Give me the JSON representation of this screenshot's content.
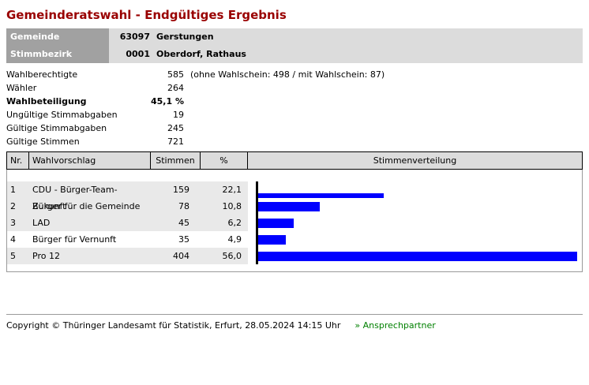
{
  "header": {
    "title": "Gemeinderatswahl - Endgültiges Ergebnis"
  },
  "info": {
    "rows": [
      {
        "label": "Gemeinde",
        "code": "63097",
        "name": "Gerstungen"
      },
      {
        "label": "Stimmbezirk",
        "code": "0001",
        "name": "Oberdorf, Rathaus"
      }
    ]
  },
  "stats": {
    "rows": [
      {
        "label": "Wahlberechtigte",
        "value": "585",
        "note": "(ohne Wahlschein: 498 / mit Wahlschein: 87)"
      },
      {
        "label": "Wähler",
        "value": "264",
        "note": ""
      },
      {
        "label": "Wahlbeteiligung",
        "value": "45,1 %",
        "note": ""
      },
      {
        "label": "Ungültige Stimmabgaben",
        "value": "19",
        "note": ""
      },
      {
        "label": "Gültige Stimmabgaben",
        "value": "245",
        "note": ""
      },
      {
        "label": "Gültige Stimmen",
        "value": "721",
        "note": ""
      }
    ]
  },
  "results": {
    "columns": {
      "nr": "Nr.",
      "wahlvorschlag": "Wahlvorschlag",
      "stimmen": "Stimmen",
      "prozent": "%",
      "verteilung": "Stimmenverteilung"
    },
    "rows": [
      {
        "nr": "1",
        "name": "CDU - Bürger-Team-Zukunft",
        "stimmen": "159",
        "prozent": "22,1"
      },
      {
        "nr": "2",
        "name": "Bürger für die Gemeinde",
        "stimmen": "78",
        "prozent": "10,8"
      },
      {
        "nr": "3",
        "name": "LAD",
        "stimmen": "45",
        "prozent": "6,2"
      },
      {
        "nr": "4",
        "name": "Bürger für Vernunft",
        "stimmen": "35",
        "prozent": "4,9"
      },
      {
        "nr": "5",
        "name": "Pro 12",
        "stimmen": "404",
        "prozent": "56,0"
      }
    ]
  },
  "chart_data": {
    "type": "bar",
    "orientation": "horizontal",
    "title": "Stimmenverteilung",
    "categories": [
      "CDU - Bürger-Team-Zukunft",
      "Bürger für die Gemeinde",
      "LAD",
      "Bürger für Vernunft",
      "Pro 12"
    ],
    "values": [
      22.1,
      10.8,
      6.2,
      4.9,
      56.0
    ],
    "votes": [
      159,
      78,
      45,
      35,
      404
    ],
    "xlabel": "",
    "ylabel": "",
    "xlim": [
      0,
      56.0
    ],
    "grid": false,
    "legend": false,
    "bar_color": "#0000ff"
  },
  "colors": {
    "title": "#990000",
    "bar": "#0000ff",
    "link": "#008000",
    "header_band": "#dcdcdc",
    "label_band": "#a1a1a1",
    "stripe": "#e9e9e9"
  },
  "footer": {
    "copyright": "Copyright © Thüringer Landesamt für Statistik, Erfurt, 28.05.2024 14:15 Uhr",
    "link_label": "» Ansprechpartner"
  }
}
